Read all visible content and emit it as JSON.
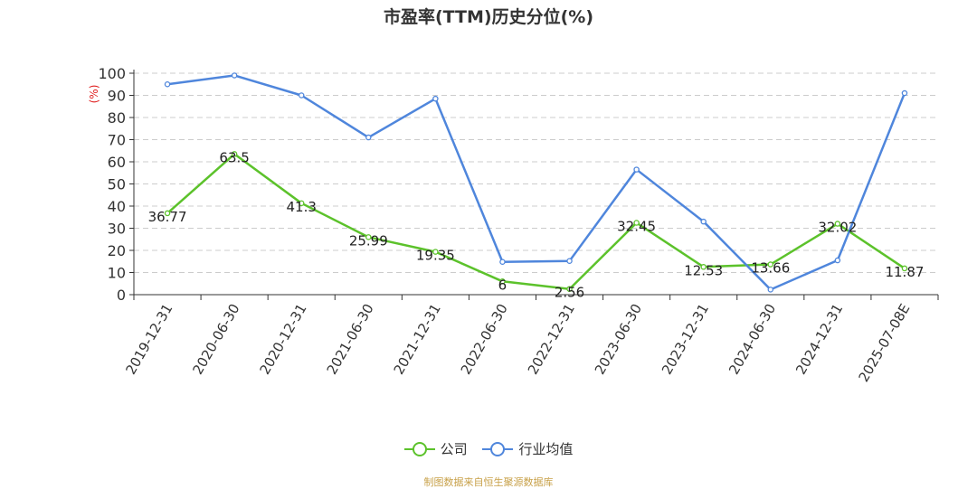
{
  "chart_data": {
    "type": "line",
    "title": "市盈率(TTM)历史分位(%)",
    "ylabel": "(%)",
    "ylim": [
      0,
      100
    ],
    "yticks": [
      0,
      10,
      20,
      30,
      40,
      50,
      60,
      70,
      80,
      90,
      100
    ],
    "grid": true,
    "legend_position": "bottom-center",
    "categories": [
      "2019-12-31",
      "2020-06-30",
      "2020-12-31",
      "2021-06-30",
      "2021-12-31",
      "2022-06-30",
      "2022-12-31",
      "2023-06-30",
      "2023-12-31",
      "2024-06-30",
      "2024-12-31",
      "2025-07-08E"
    ],
    "series": [
      {
        "name": "公司",
        "color": "#5cc22b",
        "values": [
          36.77,
          63.5,
          41.3,
          25.99,
          19.35,
          6,
          2.56,
          32.45,
          12.53,
          13.66,
          32.02,
          11.87
        ],
        "data_labels": [
          "36.77",
          "63.5",
          "41.3",
          "25.99",
          "19.35",
          "6",
          "2.56",
          "32.45",
          "12.53",
          "13.66",
          "32.02",
          "11.87"
        ]
      },
      {
        "name": "行业均值",
        "color": "#4f86dc",
        "values": [
          95,
          99,
          90,
          71,
          88.5,
          14.8,
          15.2,
          56.5,
          33,
          2.3,
          15.5,
          91
        ]
      }
    ]
  },
  "source_note": "制图数据来自恒生聚源数据库"
}
